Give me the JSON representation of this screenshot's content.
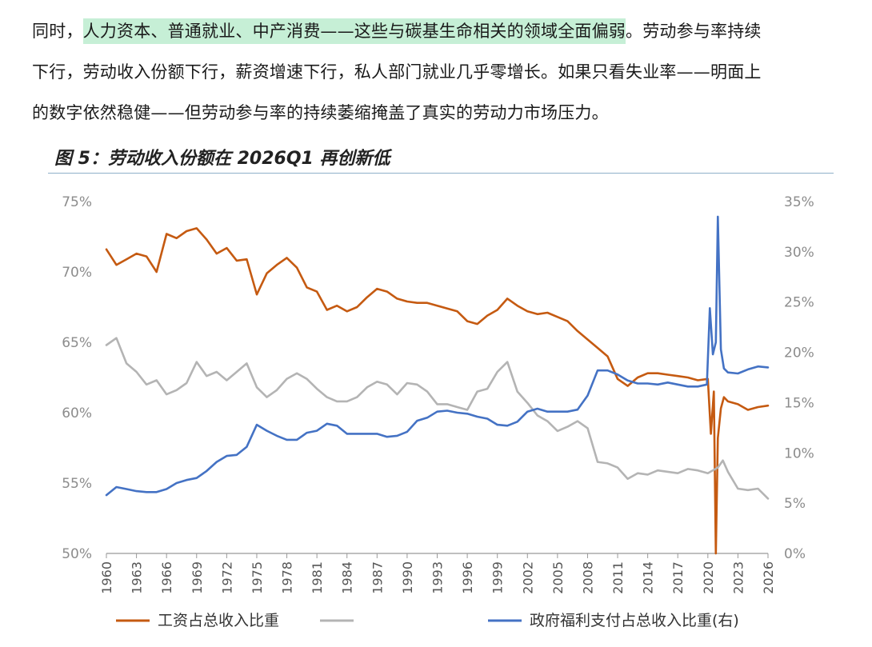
{
  "article": {
    "line1_before": "同时，",
    "line1_highlight": "人力资本、普通就业、中产消费——这些与碳基生命相关的领域全面偏弱",
    "line1_after": "。劳动参与率持续",
    "line2": "下行，劳动收入份额下行，薪资增速下行，私人部门就业几乎零增长。如果只看失业率——明面上",
    "line3": "的数字依然稳健——但劳动参与率的持续萎缩掩盖了真实的劳动力市场压力。",
    "highlight_color": "#c6efd6"
  },
  "figure": {
    "title": "图 5：劳动收入份额在 2026Q1 再创新低"
  },
  "chart_data": {
    "type": "line",
    "left_axis": {
      "range": [
        50,
        75
      ],
      "ticks": [
        "50%",
        "55%",
        "60%",
        "65%",
        "70%",
        "75%"
      ]
    },
    "right_axis": {
      "range": [
        0,
        35
      ],
      "ticks": [
        "0%",
        "5%",
        "10%",
        "15%",
        "20%",
        "25%",
        "30%",
        "35%"
      ]
    },
    "x_axis": {
      "range": [
        1960,
        2026
      ],
      "ticks": [
        "1960",
        "1963",
        "1966",
        "1969",
        "1972",
        "1975",
        "1978",
        "1981",
        "1984",
        "1987",
        "1990",
        "1993",
        "1996",
        "1999",
        "2002",
        "2005",
        "2008",
        "2011",
        "2014",
        "2017",
        "2020",
        "2023",
        "2026"
      ]
    },
    "grid": false,
    "legend_position": "bottom",
    "series": [
      {
        "name": "工资占总收入比重",
        "axis": "left",
        "color": "#c55a11",
        "points": [
          [
            1960,
            71.6
          ],
          [
            1961,
            70.5
          ],
          [
            1962,
            70.9
          ],
          [
            1963,
            71.3
          ],
          [
            1964,
            71.1
          ],
          [
            1965,
            70.0
          ],
          [
            1966,
            72.7
          ],
          [
            1967,
            72.4
          ],
          [
            1968,
            72.9
          ],
          [
            1969,
            73.1
          ],
          [
            1970,
            72.3
          ],
          [
            1971,
            71.3
          ],
          [
            1972,
            71.7
          ],
          [
            1973,
            70.8
          ],
          [
            1974,
            70.9
          ],
          [
            1975,
            68.4
          ],
          [
            1976,
            69.9
          ],
          [
            1977,
            70.5
          ],
          [
            1978,
            71.0
          ],
          [
            1979,
            70.3
          ],
          [
            1980,
            68.9
          ],
          [
            1981,
            68.6
          ],
          [
            1982,
            67.3
          ],
          [
            1983,
            67.6
          ],
          [
            1984,
            67.2
          ],
          [
            1985,
            67.5
          ],
          [
            1986,
            68.2
          ],
          [
            1987,
            68.8
          ],
          [
            1988,
            68.6
          ],
          [
            1989,
            68.1
          ],
          [
            1990,
            67.9
          ],
          [
            1991,
            67.8
          ],
          [
            1992,
            67.8
          ],
          [
            1993,
            67.6
          ],
          [
            1994,
            67.4
          ],
          [
            1995,
            67.2
          ],
          [
            1996,
            66.5
          ],
          [
            1997,
            66.3
          ],
          [
            1998,
            66.9
          ],
          [
            1999,
            67.3
          ],
          [
            2000,
            68.1
          ],
          [
            2001,
            67.6
          ],
          [
            2002,
            67.2
          ],
          [
            2003,
            67.0
          ],
          [
            2004,
            67.1
          ],
          [
            2005,
            66.8
          ],
          [
            2006,
            66.5
          ],
          [
            2007,
            65.8
          ],
          [
            2008,
            65.2
          ],
          [
            2009,
            64.6
          ],
          [
            2010,
            64.0
          ],
          [
            2011,
            62.4
          ],
          [
            2012,
            61.9
          ],
          [
            2013,
            62.5
          ],
          [
            2014,
            62.8
          ],
          [
            2015,
            62.8
          ],
          [
            2016,
            62.7
          ],
          [
            2017,
            62.6
          ],
          [
            2018,
            62.5
          ],
          [
            2019,
            62.3
          ],
          [
            2020.0,
            62.4
          ],
          [
            2020.3,
            58.5
          ],
          [
            2020.6,
            61.5
          ],
          [
            2020.8,
            50.0
          ],
          [
            2021.0,
            58.2
          ],
          [
            2021.3,
            60.3
          ],
          [
            2021.6,
            61.1
          ],
          [
            2022,
            60.8
          ],
          [
            2023,
            60.6
          ],
          [
            2024,
            60.2
          ],
          [
            2025,
            60.4
          ],
          [
            2026,
            60.5
          ]
        ]
      },
      {
        "name": "",
        "axis": "left",
        "color": "#b4b4b4",
        "points": [
          [
            1960,
            64.8
          ],
          [
            1961,
            65.3
          ],
          [
            1962,
            63.5
          ],
          [
            1963,
            62.9
          ],
          [
            1964,
            62.0
          ],
          [
            1965,
            62.3
          ],
          [
            1966,
            61.3
          ],
          [
            1967,
            61.6
          ],
          [
            1968,
            62.1
          ],
          [
            1969,
            63.6
          ],
          [
            1970,
            62.6
          ],
          [
            1971,
            62.9
          ],
          [
            1972,
            62.3
          ],
          [
            1973,
            62.9
          ],
          [
            1974,
            63.5
          ],
          [
            1975,
            61.8
          ],
          [
            1976,
            61.1
          ],
          [
            1977,
            61.6
          ],
          [
            1978,
            62.4
          ],
          [
            1979,
            62.8
          ],
          [
            1980,
            62.4
          ],
          [
            1981,
            61.7
          ],
          [
            1982,
            61.1
          ],
          [
            1983,
            60.8
          ],
          [
            1984,
            60.8
          ],
          [
            1985,
            61.1
          ],
          [
            1986,
            61.8
          ],
          [
            1987,
            62.2
          ],
          [
            1988,
            62.0
          ],
          [
            1989,
            61.3
          ],
          [
            1990,
            62.1
          ],
          [
            1991,
            62.0
          ],
          [
            1992,
            61.5
          ],
          [
            1993,
            60.6
          ],
          [
            1994,
            60.6
          ],
          [
            1995,
            60.4
          ],
          [
            1996,
            60.2
          ],
          [
            1997,
            61.5
          ],
          [
            1998,
            61.7
          ],
          [
            1999,
            62.9
          ],
          [
            2000,
            63.6
          ],
          [
            2001,
            61.5
          ],
          [
            2002,
            60.7
          ],
          [
            2003,
            59.8
          ],
          [
            2004,
            59.4
          ],
          [
            2005,
            58.7
          ],
          [
            2006,
            59.0
          ],
          [
            2007,
            59.4
          ],
          [
            2008,
            58.9
          ],
          [
            2009,
            56.5
          ],
          [
            2010,
            56.4
          ],
          [
            2011,
            56.1
          ],
          [
            2012,
            55.3
          ],
          [
            2013,
            55.7
          ],
          [
            2014,
            55.6
          ],
          [
            2015,
            55.9
          ],
          [
            2016,
            55.8
          ],
          [
            2017,
            55.7
          ],
          [
            2018,
            56.0
          ],
          [
            2019,
            55.9
          ],
          [
            2020,
            55.7
          ],
          [
            2021,
            56.1
          ],
          [
            2021.5,
            56.6
          ],
          [
            2022,
            55.8
          ],
          [
            2023,
            54.6
          ],
          [
            2024,
            54.5
          ],
          [
            2025,
            54.6
          ],
          [
            2026,
            53.9
          ]
        ]
      },
      {
        "name": "政府福利支付占总收入比重(右)",
        "axis": "right",
        "color": "#4472c4",
        "points": [
          [
            1960,
            5.8
          ],
          [
            1961,
            6.6
          ],
          [
            1962,
            6.4
          ],
          [
            1963,
            6.2
          ],
          [
            1964,
            6.1
          ],
          [
            1965,
            6.1
          ],
          [
            1966,
            6.4
          ],
          [
            1967,
            7.0
          ],
          [
            1968,
            7.3
          ],
          [
            1969,
            7.5
          ],
          [
            1970,
            8.2
          ],
          [
            1971,
            9.1
          ],
          [
            1972,
            9.7
          ],
          [
            1973,
            9.8
          ],
          [
            1974,
            10.6
          ],
          [
            1975,
            12.8
          ],
          [
            1976,
            12.2
          ],
          [
            1977,
            11.7
          ],
          [
            1978,
            11.3
          ],
          [
            1979,
            11.3
          ],
          [
            1980,
            12.0
          ],
          [
            1981,
            12.2
          ],
          [
            1982,
            12.9
          ],
          [
            1983,
            12.7
          ],
          [
            1984,
            11.9
          ],
          [
            1985,
            11.9
          ],
          [
            1986,
            11.9
          ],
          [
            1987,
            11.9
          ],
          [
            1988,
            11.6
          ],
          [
            1989,
            11.7
          ],
          [
            1990,
            12.1
          ],
          [
            1991,
            13.2
          ],
          [
            1992,
            13.5
          ],
          [
            1993,
            14.1
          ],
          [
            1994,
            14.2
          ],
          [
            1995,
            14.0
          ],
          [
            1996,
            13.9
          ],
          [
            1997,
            13.6
          ],
          [
            1998,
            13.4
          ],
          [
            1999,
            12.8
          ],
          [
            2000,
            12.7
          ],
          [
            2001,
            13.1
          ],
          [
            2002,
            14.1
          ],
          [
            2003,
            14.4
          ],
          [
            2004,
            14.1
          ],
          [
            2005,
            14.1
          ],
          [
            2006,
            14.1
          ],
          [
            2007,
            14.3
          ],
          [
            2008,
            15.7
          ],
          [
            2009,
            18.2
          ],
          [
            2010,
            18.2
          ],
          [
            2011,
            17.8
          ],
          [
            2012,
            17.2
          ],
          [
            2013,
            16.9
          ],
          [
            2014,
            16.9
          ],
          [
            2015,
            16.8
          ],
          [
            2016,
            17.0
          ],
          [
            2017,
            16.8
          ],
          [
            2018,
            16.6
          ],
          [
            2019,
            16.6
          ],
          [
            2019.9,
            16.8
          ],
          [
            2020.2,
            24.4
          ],
          [
            2020.5,
            19.8
          ],
          [
            2020.8,
            21.0
          ],
          [
            2021.0,
            33.5
          ],
          [
            2021.3,
            20.3
          ],
          [
            2021.6,
            18.4
          ],
          [
            2022,
            18.0
          ],
          [
            2023,
            17.9
          ],
          [
            2024,
            18.3
          ],
          [
            2025,
            18.6
          ],
          [
            2026,
            18.5
          ]
        ]
      }
    ]
  }
}
